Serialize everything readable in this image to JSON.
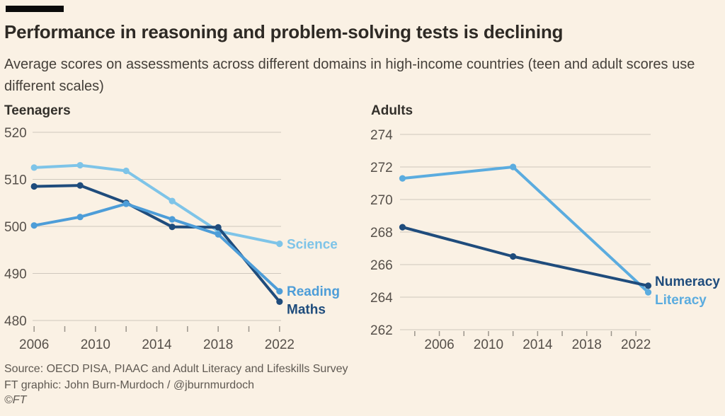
{
  "page": {
    "title": "Performance in reasoning and problem-solving tests is declining",
    "subtitle": "Average scores on assessments across different domains in high-income countries (teen and adult scores use different scales)",
    "source_line": "Source: OECD PISA, PIAAC and Adult Literacy and Lifeskills Survey",
    "credit_line": "FT graphic: John Burn-Murdoch / @jburnmurdoch",
    "copyright": "©FT"
  },
  "colors": {
    "background": "#FAF1E4",
    "gridline": "#CFC8BD",
    "tick": "#9a948b",
    "axis_text": "#56504a",
    "science": "#7EC4E8",
    "reading": "#4D9DD8",
    "maths": "#1F4C7C",
    "numeracy": "#1F4C7C",
    "literacy": "#5BACDF"
  },
  "chart_data": [
    {
      "id": "teenagers",
      "type": "line",
      "title": "Teenagers",
      "x": [
        2006,
        2009,
        2012,
        2015,
        2018,
        2022
      ],
      "series": [
        {
          "name": "Science",
          "color_key": "science",
          "values": [
            512.5,
            513.0,
            511.8,
            505.4,
            499.0,
            496.3
          ]
        },
        {
          "name": "Maths",
          "color_key": "maths",
          "values": [
            508.5,
            508.7,
            505.0,
            499.9,
            499.8,
            484.0
          ]
        },
        {
          "name": "Reading",
          "color_key": "reading",
          "values": [
            500.2,
            502.0,
            504.8,
            501.5,
            498.3,
            486.2
          ]
        }
      ],
      "xlim": [
        2005.9,
        2022.1
      ],
      "ylim": [
        480,
        520
      ],
      "yticks": [
        480,
        490,
        500,
        510,
        520
      ],
      "xticks": [
        2006,
        2008,
        2010,
        2012,
        2014,
        2016,
        2018,
        2020,
        2022
      ],
      "labeled_xticks": [
        2006,
        2010,
        2014,
        2018,
        2022
      ],
      "grid": "horizontal",
      "legend_position": "end-of-line"
    },
    {
      "id": "adults",
      "type": "line",
      "title": "Adults",
      "x": [
        2003,
        2012,
        2023
      ],
      "series": [
        {
          "name": "Literacy",
          "color_key": "literacy",
          "values": [
            271.3,
            272.0,
            264.3
          ]
        },
        {
          "name": "Numeracy",
          "color_key": "numeracy",
          "values": [
            268.3,
            266.5,
            264.7
          ]
        }
      ],
      "xlim": [
        2002.8,
        2023.2
      ],
      "ylim": [
        262,
        274
      ],
      "yticks": [
        262,
        264,
        266,
        268,
        270,
        272,
        274
      ],
      "xticks": [
        2004,
        2006,
        2008,
        2010,
        2012,
        2014,
        2016,
        2018,
        2020,
        2022
      ],
      "labeled_xticks": [
        2006,
        2010,
        2014,
        2018,
        2022
      ],
      "grid": "horizontal",
      "legend_position": "end-of-line"
    }
  ]
}
